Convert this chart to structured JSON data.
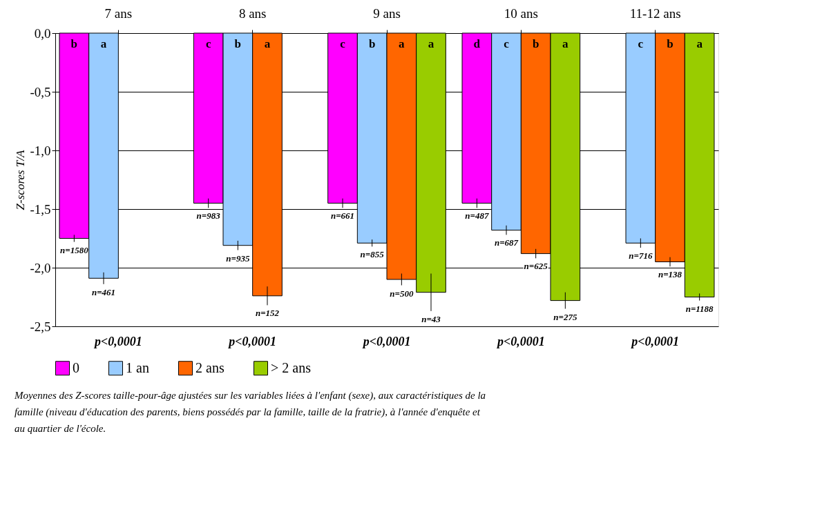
{
  "chart_data": {
    "type": "bar",
    "ylabel": "Z-scores T/A",
    "categories": [
      "7 ans",
      "8 ans",
      "9 ans",
      "10 ans",
      "11-12 ans"
    ],
    "series": [
      {
        "name": "0",
        "color": "#ff00ff",
        "values": [
          -1.75,
          -1.45,
          -1.45,
          -1.45,
          null
        ],
        "errors": [
          0.03,
          0.04,
          0.04,
          0.04,
          null
        ]
      },
      {
        "name": "1 an",
        "color": "#99ccff",
        "values": [
          -2.09,
          -1.81,
          -1.79,
          -1.68,
          -1.79
        ],
        "errors": [
          0.05,
          0.04,
          0.03,
          0.04,
          0.04
        ]
      },
      {
        "name": "2 ans",
        "color": "#ff6600",
        "values": [
          null,
          -2.24,
          -2.1,
          -1.88,
          -1.95
        ],
        "errors": [
          null,
          0.08,
          0.05,
          0.04,
          0.04
        ]
      },
      {
        "name": "> 2 ans",
        "color": "#99cc00",
        "values": [
          null,
          null,
          -2.21,
          -2.28,
          -2.25
        ],
        "errors": [
          null,
          null,
          0.16,
          0.07,
          0.03
        ]
      }
    ],
    "ylim": [
      -2.5,
      0
    ],
    "yticks": [
      {
        "value": 0,
        "label": "0,0"
      },
      {
        "value": -0.5,
        "label": "-0,5"
      },
      {
        "value": -1,
        "label": "-1,0"
      },
      {
        "value": -1.5,
        "label": "-1,5"
      },
      {
        "value": -2,
        "label": "-2,0"
      },
      {
        "value": -2.5,
        "label": "-2,5"
      }
    ],
    "grid": "y",
    "legend": "bottom",
    "annotations": [
      "b",
      "a",
      "c",
      "b",
      "a",
      "c",
      "b",
      "a",
      "a",
      "d",
      "c",
      "b",
      "a",
      "c",
      "b",
      "a",
      "n=1580",
      "n=461",
      "n=983",
      "n=935",
      "n=152",
      "n=661",
      "n=855",
      "n=500",
      "n=43",
      "n=487",
      "n=687",
      "n=625",
      "n=275",
      "n=716",
      "n=138",
      "n=1188",
      "p<0,0001",
      "p<0,0001",
      "p<0,0001",
      "p<0,0001",
      "p<0,0001",
      "Moyennes des Z-scores taille-pour-âge ajustées sur les variables liées à l'enfant (sexe), aux caractéristiques de la famille (niveau d'éducation des parents, biens possédés par la famille, taille de la fratrie), à l'année d'enquête et au quartier de l'école."
    ]
  }
}
